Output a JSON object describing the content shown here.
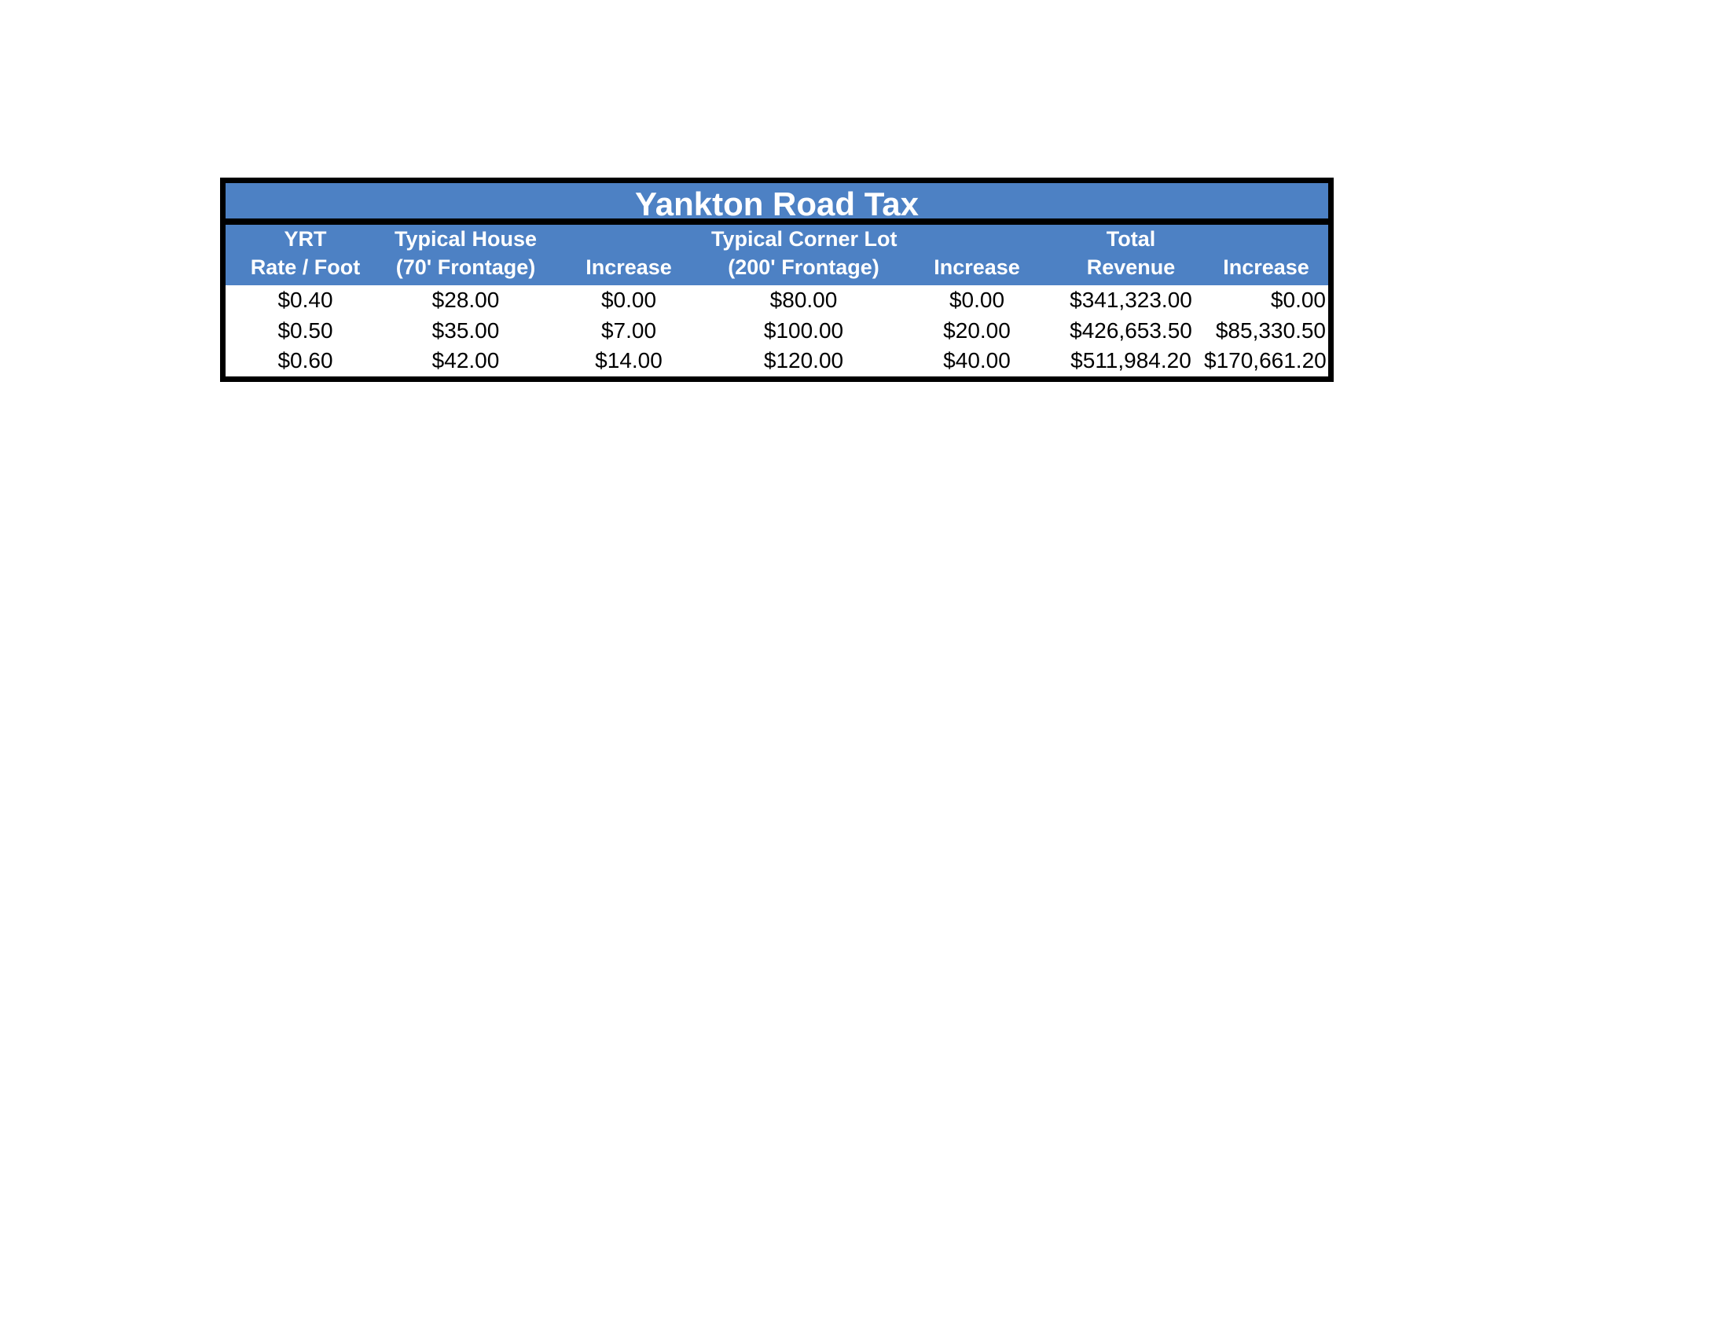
{
  "theme": {
    "header_blue": "#4d81c4",
    "border_black": "#000000",
    "header_text_color": "#ffffff",
    "body_text_color": "#000000",
    "page_background": "#ffffff"
  },
  "table": {
    "title": "Yankton Road Tax",
    "columns": [
      {
        "line1": "YRT",
        "line2": "Rate / Foot"
      },
      {
        "line1": "Typical House",
        "line2": "(70' Frontage)"
      },
      {
        "line1": "",
        "line2": "Increase"
      },
      {
        "line1": "Typical Corner Lot",
        "line2": "(200' Frontage)"
      },
      {
        "line1": "",
        "line2": "Increase"
      },
      {
        "line1": "Total",
        "line2": "Revenue"
      },
      {
        "line1": "",
        "line2": "Increase"
      }
    ],
    "rows": [
      [
        "$0.40",
        "$28.00",
        "$0.00",
        "$80.00",
        "$0.00",
        "$341,323.00",
        "$0.00"
      ],
      [
        "$0.50",
        "$35.00",
        "$7.00",
        "$100.00",
        "$20.00",
        "$426,653.50",
        "$85,330.50"
      ],
      [
        "$0.60",
        "$42.00",
        "$14.00",
        "$120.00",
        "$40.00",
        "$511,984.20",
        "$170,661.20"
      ]
    ]
  }
}
